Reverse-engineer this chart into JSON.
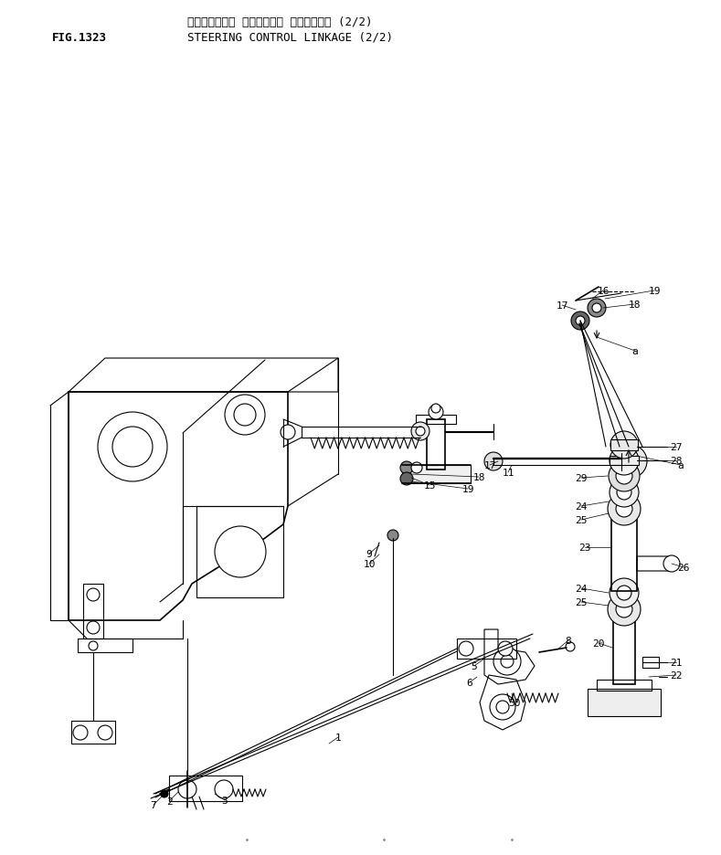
{
  "title_japanese": "ステアリング・ コントロール リンケージ・ (2/2)",
  "title_english": "STEERING CONTROL LINKAGE (2/2)",
  "fig_number": "FIG.1323",
  "background_color": "#ffffff",
  "line_color": "#000000",
  "text_color": "#000000",
  "fig_fontsize": 9,
  "title_fontsize": 9,
  "label_fontsize": 8
}
